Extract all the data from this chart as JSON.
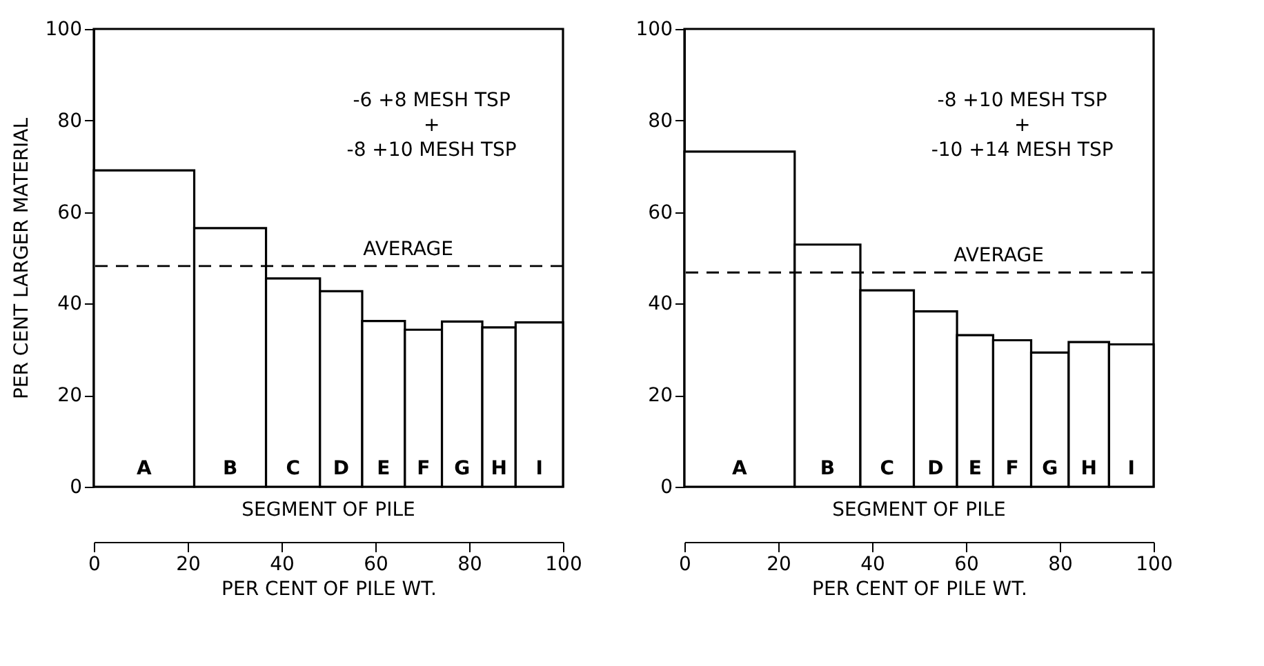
{
  "chart_data": [
    {
      "type": "histogram",
      "ylabel": "PER CENT LARGER MATERIAL",
      "xlabel": "PER CENT OF PILE WT.",
      "categories": [
        "A",
        "B",
        "C",
        "D",
        "E",
        "F",
        "G",
        "H",
        "I"
      ],
      "bins": [
        0,
        21.4,
        36.7,
        48.2,
        57.2,
        66.3,
        74.2,
        82.8,
        89.9,
        100
      ],
      "values": [
        69.1,
        56.5,
        45.5,
        42.7,
        36.2,
        34.3,
        36.1,
        34.8,
        35.9
      ],
      "xlim": [
        0,
        100
      ],
      "xticks": [
        0,
        20,
        40,
        60,
        80,
        100
      ],
      "ylim": [
        0,
        100
      ],
      "yticks": [
        0,
        20,
        40,
        60,
        80,
        100
      ],
      "ref_lines": [
        {
          "axis": "y",
          "value": 48.2,
          "label": "AVERAGE",
          "line_style": "dashed"
        }
      ],
      "annotations": [
        "-6 +8 MESH TSP\n+\n-8 +10 MESH TSP",
        "SEGMENT OF PILE"
      ]
    },
    {
      "type": "histogram",
      "xlabel": "PER CENT OF PILE WT.",
      "categories": [
        "A",
        "B",
        "C",
        "D",
        "E",
        "F",
        "G",
        "H",
        "I"
      ],
      "bins": [
        0,
        23.5,
        37.5,
        48.9,
        58.1,
        65.8,
        73.9,
        81.9,
        90.5,
        100
      ],
      "values": [
        73.2,
        52.9,
        42.9,
        38.3,
        33.1,
        32.0,
        29.3,
        31.6,
        31.1
      ],
      "xlim": [
        0,
        100
      ],
      "xticks": [
        0,
        20,
        40,
        60,
        80,
        100
      ],
      "ylim": [
        0,
        100
      ],
      "yticks": [
        0,
        20,
        40,
        60,
        80,
        100
      ],
      "ref_lines": [
        {
          "axis": "y",
          "value": 46.8,
          "label": "AVERAGE",
          "line_style": "dashed"
        }
      ],
      "annotations": [
        "-8 +10 MESH TSP\n+\n-10 +14 MESH TSP",
        "SEGMENT OF PILE"
      ]
    }
  ]
}
